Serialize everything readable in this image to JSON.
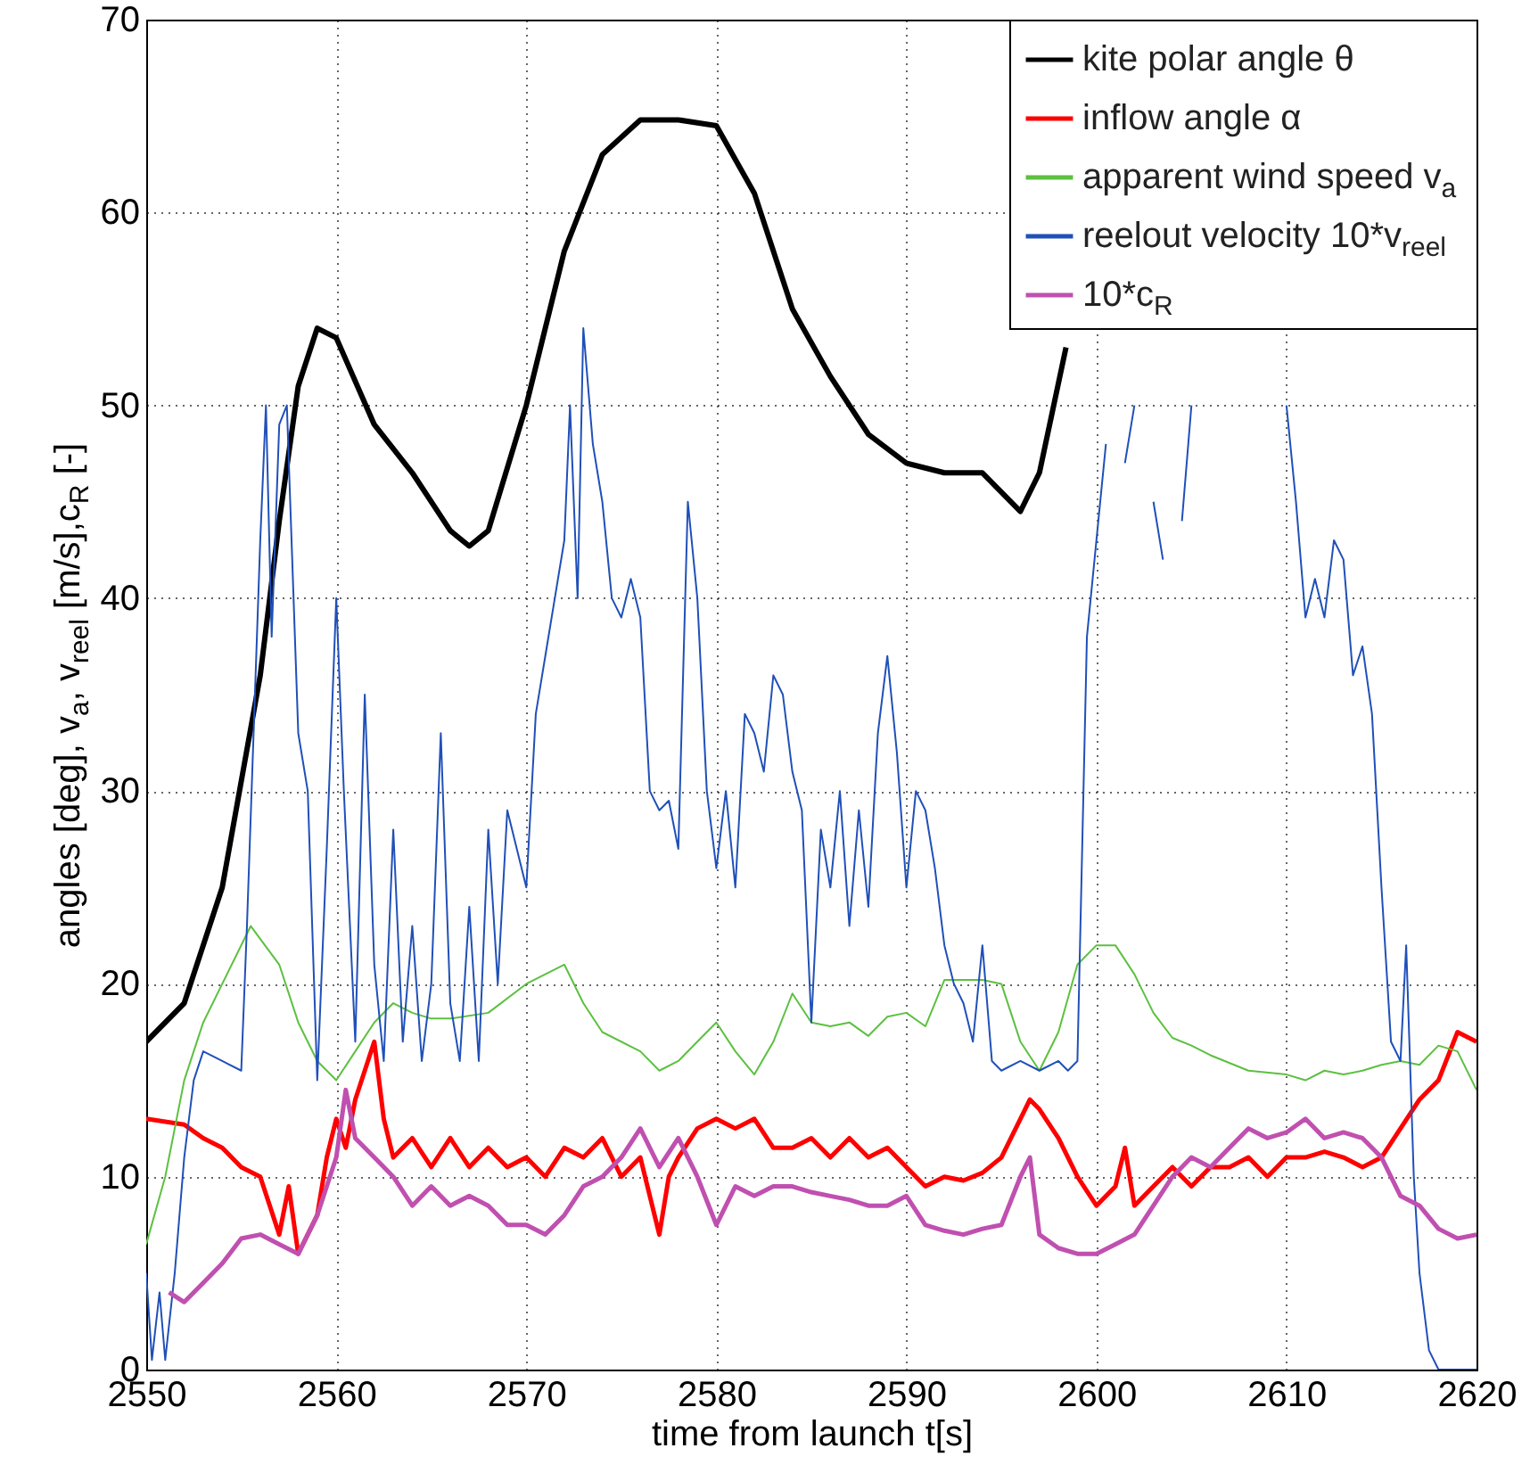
{
  "chart_data": {
    "type": "line",
    "xlabel": "time from launch t[s]",
    "ylabel": "angles [deg], v$_{a}$, v$_{reel}$ [m/s],c$_{R}$ [-]",
    "xlim": [
      2550,
      2620
    ],
    "xticks": [
      2550,
      2560,
      2570,
      2580,
      2590,
      2600,
      2610,
      2620
    ],
    "ylim": [
      0,
      70
    ],
    "yticks": [
      0,
      10,
      20,
      30,
      40,
      50,
      60,
      70
    ],
    "grid": true,
    "legend": "top right",
    "series": [
      {
        "name": "kite polar angle θ",
        "color": "#000000",
        "x": [
          2550,
          2552,
          2554,
          2556,
          2557,
          2558,
          2559,
          2560,
          2562,
          2564,
          2566,
          2567,
          2568,
          2570,
          2572,
          2574,
          2576,
          2578,
          2580,
          2582,
          2584,
          2586,
          2588,
          2590,
          2592,
          2594,
          2596,
          2597,
          2598.4
        ],
        "values": [
          17,
          19,
          25,
          36,
          44,
          51,
          54,
          53.5,
          49,
          46.5,
          43.5,
          42.7,
          43.5,
          50,
          58,
          63,
          64.8,
          64.8,
          64.5,
          61,
          55,
          51.5,
          48.5,
          47,
          46.5,
          46.5,
          44.5,
          46.5,
          53
        ]
      },
      {
        "name": "inflow angle α",
        "color": "#ff0000",
        "x": [
          2550,
          2552,
          2553,
          2554,
          2555,
          2556,
          2557,
          2557.5,
          2558,
          2559,
          2559.5,
          2560,
          2560.5,
          2561,
          2562,
          2562.5,
          2563,
          2564,
          2565,
          2566,
          2567,
          2568,
          2569,
          2570,
          2571,
          2572,
          2573,
          2574,
          2575,
          2576,
          2577,
          2577.5,
          2578,
          2579,
          2580,
          2581,
          2582,
          2583,
          2584,
          2585,
          2586,
          2587,
          2588,
          2589,
          2590,
          2591,
          2592,
          2593,
          2594,
          2595,
          2596,
          2596.5,
          2597,
          2598,
          2599,
          2600,
          2601,
          2601.5,
          2602,
          2603,
          2604,
          2605,
          2606,
          2607,
          2608,
          2609,
          2610,
          2611,
          2612,
          2613,
          2614,
          2615,
          2616,
          2617,
          2618,
          2619,
          2620
        ],
        "values": [
          13,
          12.7,
          12,
          11.5,
          10.5,
          10,
          7,
          9.5,
          6,
          8,
          11,
          13,
          11.5,
          14,
          17,
          13,
          11,
          12,
          10.5,
          12,
          10.5,
          11.5,
          10.5,
          11,
          10,
          11.5,
          11,
          12,
          10,
          11,
          7,
          10,
          11,
          12.5,
          13,
          12.5,
          13,
          11.5,
          11.5,
          12,
          11,
          12,
          11,
          11.5,
          10.5,
          9.5,
          10,
          9.8,
          10.2,
          11,
          13,
          14,
          13.5,
          12,
          10,
          8.5,
          9.5,
          11.5,
          8.5,
          9.5,
          10.5,
          9.5,
          10.5,
          10.5,
          11,
          10,
          11,
          11,
          11.3,
          11,
          10.5,
          11,
          12.5,
          14,
          15,
          17.5,
          17
        ]
      },
      {
        "name": "apparent wind speed v$_{a}$",
        "color": "#5cc040",
        "x": [
          2550,
          2551,
          2552,
          2553,
          2554,
          2555.5,
          2557,
          2558,
          2559,
          2560,
          2561,
          2562,
          2563,
          2564,
          2565,
          2566,
          2568,
          2570,
          2572,
          2573,
          2574,
          2576,
          2577,
          2578,
          2579,
          2580,
          2581,
          2582,
          2583,
          2584,
          2585,
          2586,
          2587,
          2588,
          2589,
          2590,
          2591,
          2592,
          2594,
          2595,
          2596,
          2597,
          2598,
          2599,
          2600,
          2601,
          2602,
          2603,
          2604,
          2605,
          2606,
          2608,
          2610,
          2611,
          2612,
          2613,
          2614,
          2615,
          2616,
          2617,
          2618,
          2619,
          2620
        ],
        "values": [
          6.5,
          10,
          15,
          18,
          20,
          23,
          21,
          18,
          16,
          15,
          16.5,
          18,
          19,
          18.5,
          18.2,
          18.2,
          18.5,
          20,
          21,
          19,
          17.5,
          16.5,
          15.5,
          16,
          17,
          18,
          16.5,
          15.3,
          17,
          19.5,
          18,
          17.8,
          18,
          17.3,
          18.3,
          18.5,
          17.8,
          20.2,
          20.2,
          20,
          17,
          15.5,
          17.5,
          21,
          22,
          22,
          20.5,
          18.5,
          17.2,
          16.8,
          16.3,
          15.5,
          15.3,
          15,
          15.5,
          15.3,
          15.5,
          15.8,
          16,
          15.8,
          16.8,
          16.5,
          14.5
        ]
      },
      {
        "name": "reelout velocity 10*v$_{reel}$",
        "color": "#2050b8",
        "x": [
          2550,
          2550.3,
          2550.7,
          2551,
          2551.5,
          2552,
          2552.5,
          2553,
          2554,
          2555,
          2555.3,
          2556,
          2556.3,
          2556.6,
          2557,
          2557.4,
          2558,
          2558.5,
          2559,
          2559.5,
          2560,
          2560.4,
          2561,
          2561.5,
          2562,
          2562.5,
          2563,
          2563.5,
          2564,
          2564.5,
          2565,
          2565.5,
          2566,
          2566.5,
          2567,
          2567.5,
          2568,
          2568.5,
          2569,
          2570,
          2570.5,
          2571,
          2571.5,
          2572,
          2572.3,
          2572.7,
          2573,
          2573.5,
          2574,
          2574.5,
          2575,
          2575.5,
          2576,
          2576.5,
          2577,
          2577.5,
          2578,
          2578.5,
          2579,
          2579.5,
          2580,
          2580.5,
          2581,
          2581.5,
          2582,
          2582.5,
          2583,
          2583.5,
          2584,
          2584.5,
          2585,
          2585.5,
          2586,
          2586.5,
          2587,
          2587.5,
          2588,
          2588.5,
          2589,
          2589.5,
          2590,
          2590.5,
          2591,
          2591.5,
          2592,
          2592.5,
          2593,
          2593.5,
          2594,
          2594.5,
          2595,
          2596,
          2597,
          2598,
          2598.5,
          2599,
          2599.5,
          2600,
          2600.5,
          2601,
          2601.5,
          2602,
          2602.5,
          2603,
          2603.5,
          2604,
          2604.5,
          2605,
          2605.5,
          2606,
          2607,
          2608,
          2609,
          2609.5,
          2610,
          2610.5,
          2611,
          2611.5,
          2612,
          2612.5,
          2613,
          2613.5,
          2614,
          2614.5,
          2615,
          2615.5,
          2616,
          2616.3,
          2616.7,
          2617,
          2617.5,
          2618,
          2620
        ],
        "values": [
          5,
          0.5,
          4,
          0.5,
          5,
          11,
          15,
          16.5,
          16,
          15.5,
          23,
          43,
          50,
          38,
          49,
          50,
          33,
          30,
          15,
          27,
          40,
          30,
          17,
          35,
          21,
          16,
          28,
          17,
          23,
          16,
          20,
          33,
          19,
          16,
          24,
          16,
          28,
          20,
          29,
          25,
          34,
          37,
          40,
          43,
          50,
          40,
          54,
          48,
          45,
          40,
          39,
          41,
          39,
          30,
          29,
          29.5,
          27,
          45,
          40,
          30,
          26,
          30,
          25,
          34,
          33,
          31,
          36,
          35,
          31,
          29,
          18,
          28,
          25,
          30,
          23,
          29,
          24,
          33,
          37,
          32,
          25,
          30,
          29,
          26,
          22,
          20,
          19,
          17,
          22,
          16,
          15.5,
          16,
          15.5,
          16,
          15.5,
          16,
          38,
          43,
          48,
          null,
          47,
          50,
          null,
          45,
          42,
          null,
          44,
          50,
          null,
          null,
          null,
          null,
          null,
          null,
          50,
          45,
          39,
          41,
          39,
          43,
          42,
          36,
          37.5,
          34,
          25,
          17,
          16,
          22,
          10,
          5,
          1,
          0,
          0
        ]
      },
      {
        "name": "10*c$_{R}$",
        "color": "#c050b0",
        "x": [
          2551.2,
          2552,
          2553,
          2554,
          2555,
          2556,
          2557,
          2558,
          2559,
          2560,
          2560.5,
          2561,
          2562,
          2563,
          2564,
          2565,
          2566,
          2567,
          2568,
          2569,
          2570,
          2571,
          2572,
          2573,
          2574,
          2575,
          2576,
          2577,
          2578,
          2579,
          2580,
          2581,
          2582,
          2583,
          2584,
          2585,
          2586,
          2587,
          2588,
          2589,
          2590,
          2591,
          2592,
          2593,
          2594,
          2595,
          2596,
          2596.5,
          2597,
          2598,
          2599,
          2600,
          2601,
          2602,
          2603,
          2604,
          2605,
          2606,
          2607,
          2608,
          2609,
          2610,
          2611,
          2612,
          2613,
          2614,
          2615,
          2616,
          2617,
          2618,
          2619,
          2620
        ],
        "values": [
          4,
          3.5,
          4.5,
          5.5,
          6.8,
          7,
          6.5,
          6,
          8,
          11,
          14.5,
          12,
          11,
          10,
          8.5,
          9.5,
          8.5,
          9,
          8.5,
          7.5,
          7.5,
          7,
          8,
          9.5,
          10,
          11,
          12.5,
          10.5,
          12,
          10,
          7.5,
          9.5,
          9,
          9.5,
          9.5,
          9.2,
          9,
          8.8,
          8.5,
          8.5,
          9,
          7.5,
          7.2,
          7,
          7.3,
          7.5,
          10,
          11,
          7,
          6.3,
          6,
          6,
          6.5,
          7,
          8.5,
          10,
          11,
          10.5,
          11.5,
          12.5,
          12,
          12.3,
          13,
          12,
          12.3,
          12,
          11,
          9,
          8.5,
          7.3,
          6.8,
          7
        ]
      }
    ]
  }
}
